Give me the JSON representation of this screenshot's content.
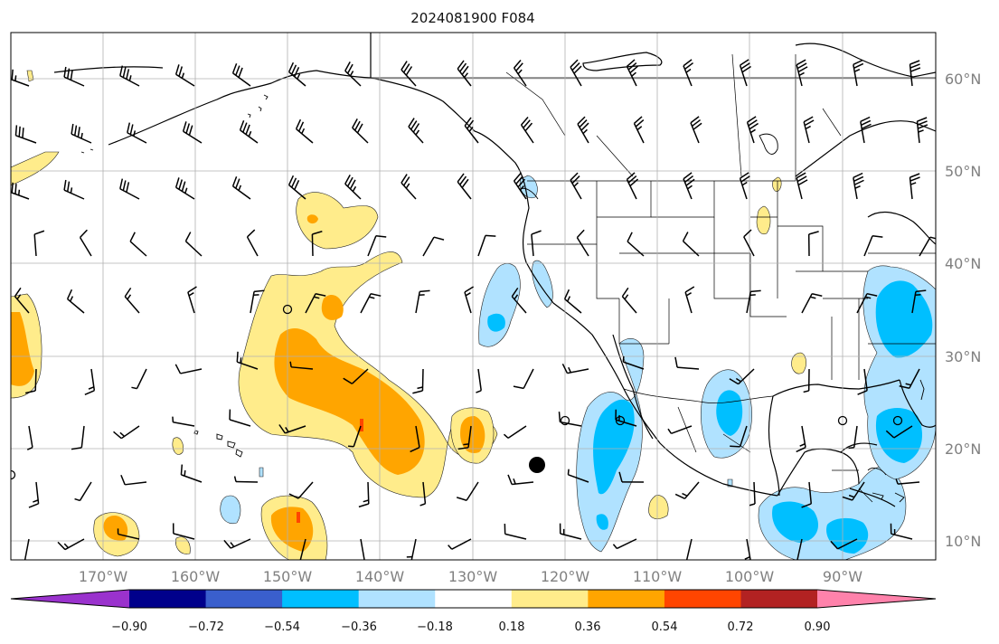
{
  "title": "2024081900 F084",
  "longitude_labels": [
    "170°W",
    "160°W",
    "150°W",
    "140°W",
    "130°W",
    "120°W",
    "110°W",
    "100°W",
    "90°W"
  ],
  "latitude_labels": [
    "60°N",
    "50°N",
    "40°N",
    "30°N",
    "20°N",
    "10°N"
  ],
  "colorbar": {
    "tick_labels": [
      "−0.90",
      "−0.72",
      "−0.54",
      "−0.36",
      "−0.18",
      "0.18",
      "0.36",
      "0.54",
      "0.72",
      "0.90"
    ],
    "colors": [
      "#9a32cd",
      "#00008b",
      "#3a5fcd",
      "#00bfff",
      "#b0e2ff",
      "#ffffff",
      "#ffec8b",
      "#ffa500",
      "#ff4500",
      "#b22222",
      "#ff82ab"
    ]
  },
  "colors": {
    "ocean": "#ffffff",
    "land_outline": "#000000",
    "grid": "#b0b0b0",
    "neg_light": "#b0e2ff",
    "neg_mid": "#00bfff",
    "pos_light": "#ffec8b",
    "pos_mid": "#ffa500",
    "pos_high": "#ff4500"
  },
  "markers": {
    "storm_center_icon": "filled-circle-icon",
    "hollow_marker_icon": "hollow-circle-icon"
  }
}
